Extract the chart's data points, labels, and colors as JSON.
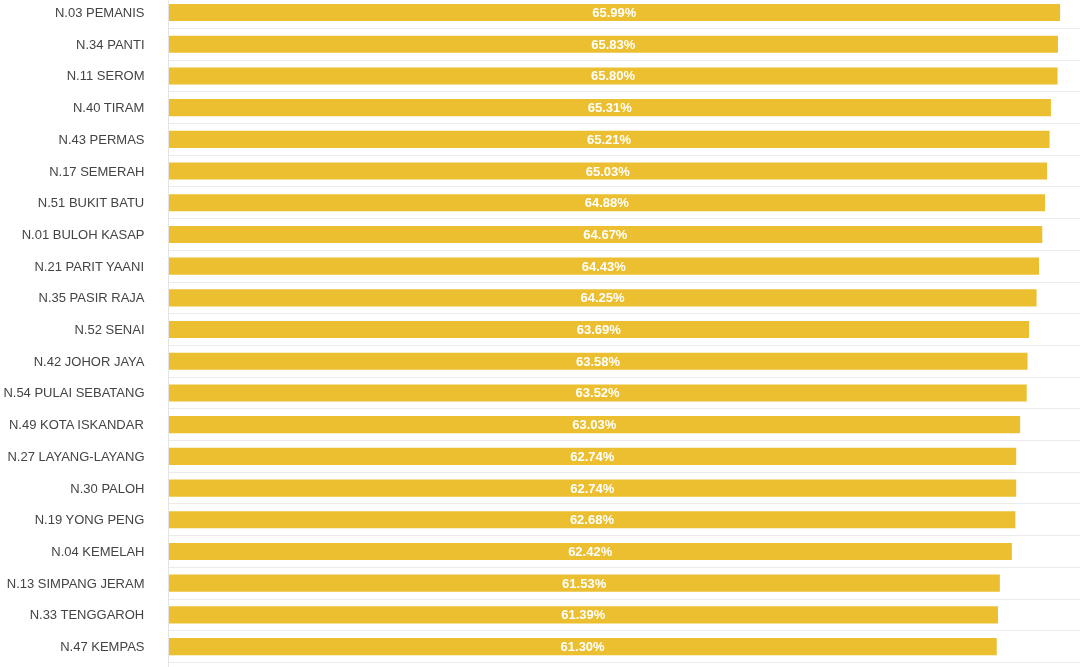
{
  "chart_data": {
    "type": "bar",
    "orientation": "horizontal",
    "categories": [
      "N.03 PEMANIS",
      "N.34 PANTI",
      "N.11 SEROM",
      "N.40 TIRAM",
      "N.43 PERMAS",
      "N.17 SEMERAH",
      "N.51 BUKIT BATU",
      "N.01 BULOH KASAP",
      "N.21 PARIT YAANI",
      "N.35 PASIR RAJA",
      "N.52 SENAI",
      "N.42 JOHOR JAYA",
      "N.54 PULAI SEBATANG",
      "N.49 KOTA ISKANDAR",
      "N.27 LAYANG-LAYANG",
      "N.30 PALOH",
      "N.19 YONG PENG",
      "N.04 KEMELAH",
      "N.13 SIMPANG JERAM",
      "N.33 TENGGAROH",
      "N.47 KEMPAS"
    ],
    "values": [
      65.99,
      65.83,
      65.8,
      65.31,
      65.21,
      65.03,
      64.88,
      64.67,
      64.43,
      64.25,
      63.69,
      63.58,
      63.52,
      63.03,
      62.74,
      62.74,
      62.68,
      62.42,
      61.53,
      61.39,
      61.3
    ],
    "value_labels": [
      "65.99%",
      "65.83%",
      "65.80%",
      "65.31%",
      "65.21%",
      "65.03%",
      "64.88%",
      "64.67%",
      "64.43%",
      "64.25%",
      "63.69%",
      "63.58%",
      "63.52%",
      "63.03%",
      "62.74%",
      "62.74%",
      "62.68%",
      "62.42%",
      "61.53%",
      "61.39%",
      "61.30%"
    ],
    "color": "#ebbf2f",
    "xlim": [
      0,
      67.5
    ],
    "tick_labels": "y",
    "grid": "y"
  }
}
